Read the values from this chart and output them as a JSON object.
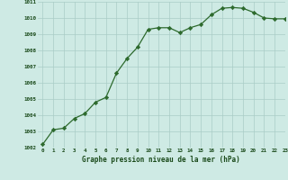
{
  "x": [
    0,
    1,
    2,
    3,
    4,
    5,
    6,
    7,
    8,
    9,
    10,
    11,
    12,
    13,
    14,
    15,
    16,
    17,
    18,
    19,
    20,
    21,
    22,
    23
  ],
  "y": [
    1002.2,
    1003.1,
    1003.2,
    1003.8,
    1004.1,
    1004.8,
    1005.1,
    1006.6,
    1007.5,
    1008.2,
    1009.3,
    1009.4,
    1009.4,
    1009.1,
    1009.4,
    1009.6,
    1010.2,
    1010.6,
    1010.65,
    1010.6,
    1010.35,
    1010.0,
    1009.95,
    1009.95
  ],
  "line_color": "#2d6a2d",
  "marker": "D",
  "marker_size": 2.2,
  "bg_color": "#ceeae4",
  "grid_color": "#aaccc6",
  "xlabel": "Graphe pression niveau de la mer (hPa)",
  "xlabel_color": "#1a4a1a",
  "tick_color": "#1a4a1a",
  "ylim": [
    1002,
    1011
  ],
  "xlim": [
    -0.5,
    23
  ],
  "yticks": [
    1002,
    1003,
    1004,
    1005,
    1006,
    1007,
    1008,
    1009,
    1010,
    1011
  ],
  "xticks": [
    0,
    1,
    2,
    3,
    4,
    5,
    6,
    7,
    8,
    9,
    10,
    11,
    12,
    13,
    14,
    15,
    16,
    17,
    18,
    19,
    20,
    21,
    22,
    23
  ]
}
